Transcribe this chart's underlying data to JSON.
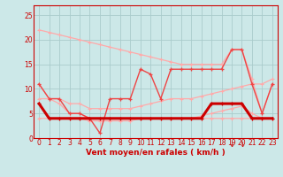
{
  "x": [
    0,
    1,
    2,
    3,
    4,
    5,
    6,
    7,
    8,
    9,
    10,
    11,
    12,
    13,
    14,
    15,
    16,
    17,
    18,
    19,
    20,
    21,
    22,
    23
  ],
  "wind_avg": [
    7,
    4,
    4,
    4,
    4,
    4,
    4,
    4,
    4,
    4,
    4,
    4,
    4,
    4,
    4,
    4,
    4,
    7,
    7,
    7,
    7,
    4,
    4,
    4
  ],
  "wind_gust": [
    11,
    8,
    8,
    5,
    5,
    4,
    1,
    8,
    8,
    8,
    14,
    13,
    8,
    14,
    14,
    14,
    14,
    14,
    14,
    18,
    18,
    11,
    5,
    11
  ],
  "trend_high": [
    22,
    21.5,
    21,
    20.5,
    20,
    19.5,
    19,
    18.5,
    18,
    17.5,
    17,
    16.5,
    16,
    15.5,
    15,
    15,
    15,
    15,
    15,
    18,
    18,
    12,
    5,
    11
  ],
  "trend_low": [
    11,
    8,
    7,
    5,
    5,
    4,
    4,
    4,
    4,
    4,
    4,
    4,
    4,
    4,
    4,
    4,
    4,
    4,
    4,
    4,
    4,
    4,
    4,
    4
  ],
  "trend_band_high": [
    8,
    8,
    8,
    7,
    7,
    6,
    6,
    6,
    6,
    6,
    6.5,
    7,
    7.5,
    8,
    8,
    8,
    8.5,
    9,
    9.5,
    10,
    10.5,
    11,
    11,
    12
  ],
  "trend_band_low": [
    4,
    4,
    4,
    4,
    4,
    3.5,
    3.5,
    3.5,
    3.5,
    3.5,
    4,
    4,
    4,
    4,
    4,
    4,
    4.5,
    5,
    5.5,
    6,
    6.5,
    5,
    4,
    4
  ],
  "background_color": "#cce8e8",
  "grid_color": "#aacccc",
  "color_dark_red": "#cc0000",
  "color_medium_red": "#ee4444",
  "color_light_red": "#ffaaaa",
  "xlabel": "Vent moyen/en rafales ( km/h )",
  "yticks": [
    0,
    5,
    10,
    15,
    20,
    25
  ],
  "xticks": [
    0,
    1,
    2,
    3,
    4,
    5,
    6,
    7,
    8,
    9,
    10,
    11,
    12,
    13,
    14,
    15,
    16,
    17,
    18,
    19,
    20,
    21,
    22,
    23
  ],
  "ylim": [
    0,
    27
  ],
  "xlim": [
    -0.5,
    23.5
  ]
}
